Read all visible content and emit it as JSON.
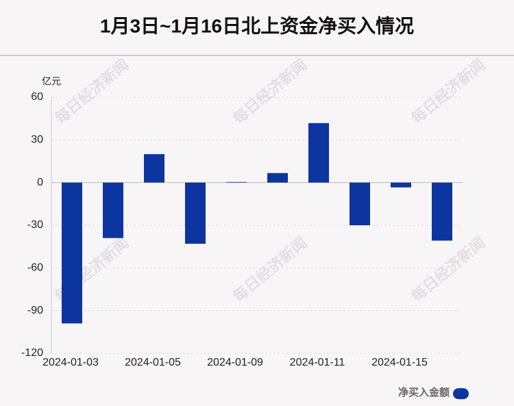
{
  "chart_data": {
    "type": "bar",
    "title": "1月3日~1月16日北上资金净买入情况",
    "y_unit": "亿元",
    "watermark": "每日经济新闻",
    "categories": [
      "2024-01-03",
      null,
      "2024-01-05",
      null,
      "2024-01-09",
      null,
      "2024-01-11",
      null,
      "2024-01-15",
      null
    ],
    "series": [
      {
        "name": "净买入金额",
        "color": "#0d35a0",
        "values": [
          -99,
          -39,
          20,
          -43,
          0.4,
          6.7,
          41.8,
          -30,
          -3.4,
          -40.8
        ]
      }
    ],
    "ylim": [
      -120,
      60
    ],
    "yticks": [
      -120,
      -90,
      -60,
      -30,
      0,
      30,
      60
    ],
    "grid": true,
    "legend": "bottom-right"
  }
}
